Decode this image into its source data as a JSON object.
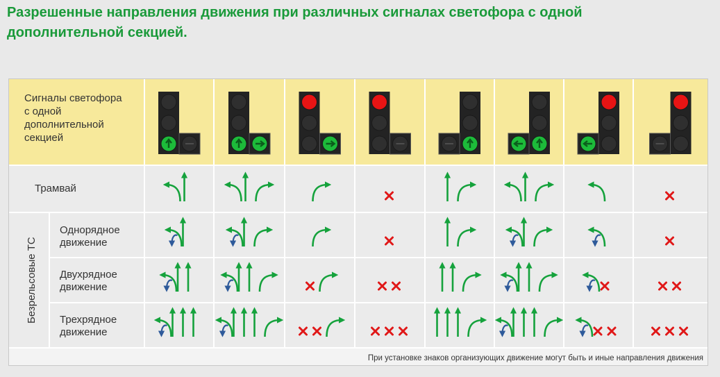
{
  "title": "Разрешенные направления движения при различных сигналах светофора с одной дополнительной секцией.",
  "table": {
    "header_label": [
      "Сигналы светофора",
      "с одной",
      "дополнительной",
      "секцией"
    ],
    "row_tram": "Трамвай",
    "side_label": "Безрельсовые ТС",
    "row_single": [
      "Однорядное",
      "движение"
    ],
    "row_double": [
      "Двухрядное",
      "движение"
    ],
    "row_triple": [
      "Трехрядное",
      "движение"
    ],
    "footnote": "При установке знаков организующих движение могут быть и иные направления движения"
  },
  "colors": {
    "header_bg": "#f7e99b",
    "signal_red": "#e81414",
    "signal_green": "#1dbb3a",
    "arrow_green": "#15a23c",
    "arrow_blue": "#2e5a9a",
    "forbidden_red": "#e01818"
  },
  "columns": [
    {
      "section": "right",
      "lights": [
        "off",
        "off",
        "green_up",
        "off"
      ],
      "tram": [
        "left",
        "up"
      ],
      "single": [
        "left",
        "uturn",
        "up"
      ],
      "double": [
        "left",
        "uturn",
        "up",
        "up"
      ],
      "triple": [
        "left",
        "uturn",
        "up",
        "up",
        "up"
      ]
    },
    {
      "section": "right",
      "lights": [
        "off",
        "off",
        "green_up",
        "green_right"
      ],
      "tram": [
        "left",
        "up",
        "right"
      ],
      "single": [
        "left",
        "uturn",
        "up",
        "right"
      ],
      "double": [
        "left",
        "uturn",
        "up",
        "up",
        "right"
      ],
      "triple": [
        "left",
        "uturn",
        "up",
        "up",
        "up",
        "right"
      ]
    },
    {
      "section": "right",
      "lights": [
        "red",
        "off",
        "off",
        "green_right"
      ],
      "tram": [
        "right"
      ],
      "single": [
        "right"
      ],
      "double": [
        "x",
        "right"
      ],
      "triple": [
        "x",
        "x",
        "right"
      ]
    },
    {
      "section": "right",
      "lights": [
        "red",
        "off",
        "off",
        "off"
      ],
      "tram": [
        "x"
      ],
      "single": [
        "x"
      ],
      "double": [
        "x",
        "x"
      ],
      "triple": [
        "x",
        "x",
        "x"
      ]
    },
    {
      "section": "left",
      "lights": [
        "off",
        "off",
        "green_up",
        "off"
      ],
      "tram": [
        "up",
        "right"
      ],
      "single": [
        "up",
        "right"
      ],
      "double": [
        "up",
        "up",
        "right"
      ],
      "triple": [
        "up",
        "up",
        "up",
        "right"
      ]
    },
    {
      "section": "left",
      "lights": [
        "off",
        "off",
        "green_up",
        "green_left"
      ],
      "tram": [
        "left",
        "up",
        "right"
      ],
      "single": [
        "left",
        "uturn",
        "up",
        "right"
      ],
      "double": [
        "left",
        "uturn",
        "up",
        "up",
        "right"
      ],
      "triple": [
        "left",
        "uturn",
        "up",
        "up",
        "up",
        "right"
      ]
    },
    {
      "section": "left",
      "lights": [
        "red",
        "off",
        "off",
        "green_left"
      ],
      "tram": [
        "left"
      ],
      "single": [
        "left",
        "uturn"
      ],
      "double": [
        "left",
        "uturn",
        "x"
      ],
      "triple": [
        "left",
        "uturn",
        "x",
        "x"
      ]
    },
    {
      "section": "left",
      "lights": [
        "red",
        "off",
        "off",
        "off"
      ],
      "tram": [
        "x"
      ],
      "single": [
        "x"
      ],
      "double": [
        "x",
        "x"
      ],
      "triple": [
        "x",
        "x",
        "x"
      ]
    }
  ]
}
